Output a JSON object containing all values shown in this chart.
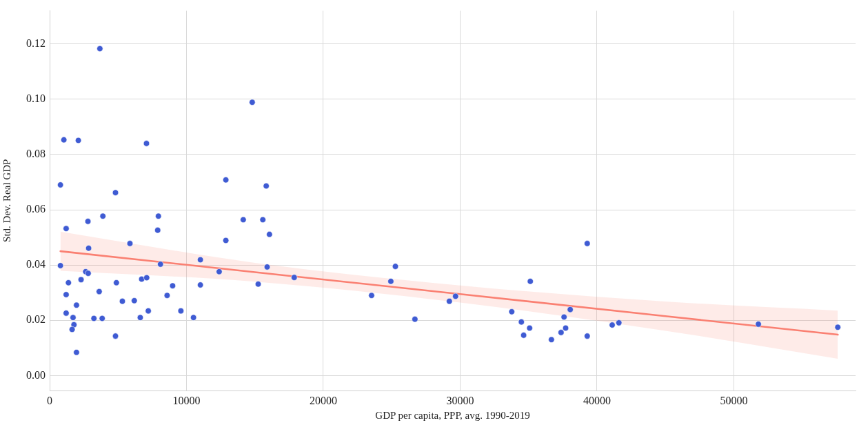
{
  "chart_data": {
    "type": "scatter",
    "xlabel": "GDP per capita, PPP, avg. 1990-2019",
    "ylabel": "Std. Dev. Real GDP",
    "xlim": [
      0,
      58900
    ],
    "ylim": [
      -0.0054,
      0.132
    ],
    "xticks": [
      0,
      10000,
      20000,
      30000,
      40000,
      50000
    ],
    "yticks": [
      {
        "value": 0,
        "label": "0.00"
      },
      {
        "value": 0.02,
        "label": "0.02"
      },
      {
        "value": 0.04,
        "label": "0.04"
      },
      {
        "value": 0.06,
        "label": "0.06"
      },
      {
        "value": 0.08,
        "label": "0.08"
      },
      {
        "value": 0.1,
        "label": "0.10"
      },
      {
        "value": 0.12,
        "label": "0.12"
      }
    ],
    "grid": true,
    "legend": false,
    "marker": "circle",
    "series": [
      {
        "color": "#3f5bd3",
        "x": [
          3672,
          1040,
          2097,
          7077,
          789,
          4812,
          1207,
          2800,
          3890,
          7948,
          7897,
          5869,
          2850,
          789,
          8099,
          2633,
          2817,
          1375,
          2297,
          4879,
          6724,
          7093,
          8988,
          1207,
          3622,
          8585,
          1962,
          5315,
          6187,
          1207,
          7210,
          9591,
          1710,
          3236,
          3840,
          6623,
          1777,
          1643,
          4812,
          1962,
          10513,
          14805,
          12877,
          15828,
          14150,
          15578,
          16064,
          12877,
          11016,
          12390,
          15895,
          17873,
          11016,
          15241,
          25267,
          24935,
          23526,
          26695,
          29210,
          29663,
          39286,
          35126,
          33770,
          34473,
          35076,
          34641,
          36670,
          37374,
          37710,
          37592,
          38044,
          39286,
          41112,
          41600,
          51795,
          57596
        ],
        "values": [
          0.1183,
          0.0853,
          0.0851,
          0.084,
          0.069,
          0.0662,
          0.0532,
          0.0558,
          0.0577,
          0.0577,
          0.0526,
          0.0478,
          0.0461,
          0.0398,
          0.0403,
          0.0376,
          0.037,
          0.0336,
          0.0347,
          0.0336,
          0.0349,
          0.0354,
          0.0325,
          0.0293,
          0.0304,
          0.029,
          0.0255,
          0.0269,
          0.0271,
          0.0226,
          0.0234,
          0.0234,
          0.021,
          0.0207,
          0.0207,
          0.021,
          0.0184,
          0.0167,
          0.0143,
          0.0084,
          0.021,
          0.0989,
          0.0708,
          0.0686,
          0.0564,
          0.0564,
          0.0511,
          0.0489,
          0.0419,
          0.0376,
          0.0393,
          0.0355,
          0.0328,
          0.0331,
          0.0395,
          0.0341,
          0.029,
          0.0204,
          0.0269,
          0.0287,
          0.0478,
          0.0341,
          0.0231,
          0.0194,
          0.0172,
          0.0146,
          0.013,
          0.0156,
          0.0172,
          0.0212,
          0.0239,
          0.0143,
          0.0183,
          0.0191,
          0.0186,
          0.0175
        ]
      },
      {
        "type": "line",
        "color": "#fa8072",
        "marker": "none",
        "x": [
          790,
          15000,
          30000,
          45000,
          57600
        ],
        "values": [
          0.045,
          0.0374,
          0.0295,
          0.0215,
          0.0148
        ],
        "lower": [
          0.0379,
          0.034,
          0.0264,
          0.0162,
          0.0061
        ],
        "upper": [
          0.0521,
          0.0408,
          0.0326,
          0.0268,
          0.0235
        ]
      }
    ]
  }
}
